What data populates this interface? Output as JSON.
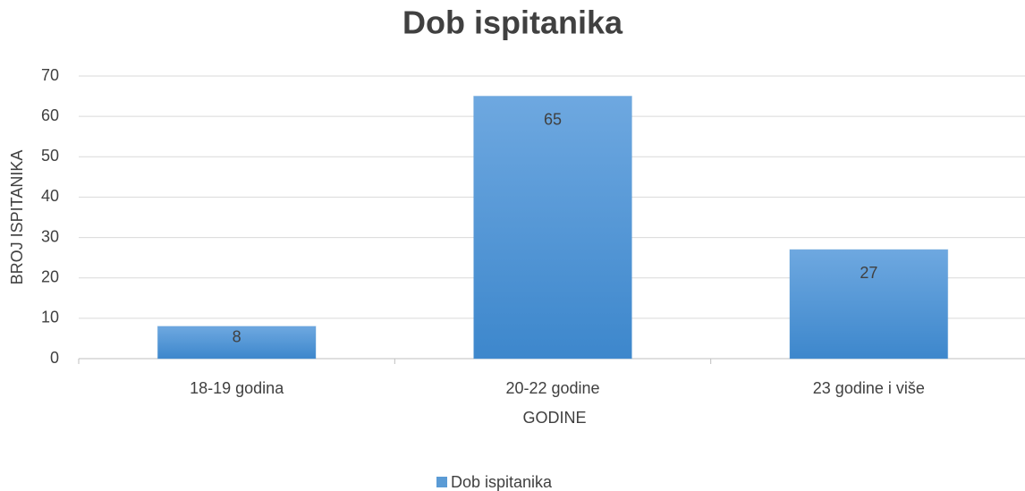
{
  "chart_data": {
    "type": "bar",
    "title": "Dob ispitanika",
    "x_label": "GODINE",
    "y_label": "BROJ ISPITANIKA",
    "categories": [
      "18-19 godina",
      "20-22 godine",
      "23 godine i više"
    ],
    "series": [
      {
        "name": "Dob ispitanika",
        "color": "#5b9bd5",
        "values": [
          8,
          65,
          27
        ]
      }
    ],
    "ylim": [
      0,
      70
    ],
    "yticks": [
      0,
      10,
      20,
      30,
      40,
      50,
      60,
      70
    ],
    "grid": true,
    "legend": "bottom"
  }
}
